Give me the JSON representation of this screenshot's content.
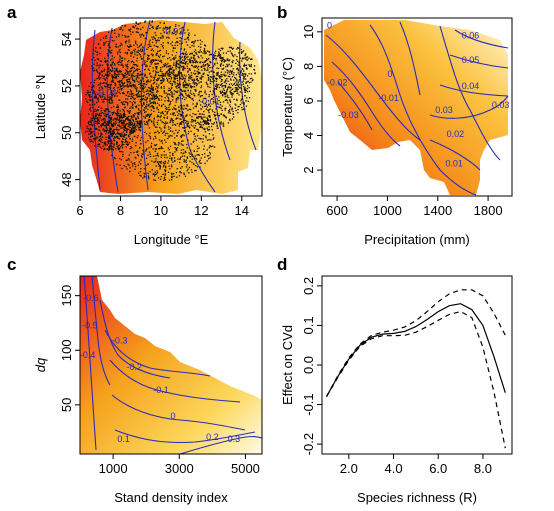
{
  "chart_data": [
    {
      "panel": "a",
      "type": "heatmap",
      "xlabel": "Longitude °E",
      "ylabel": "Latitude °N",
      "xlim": [
        6,
        15
      ],
      "ylim": [
        47.3,
        54.9
      ],
      "xticks": [
        6,
        8,
        10,
        12,
        14
      ],
      "yticks": [
        48,
        50,
        52,
        54
      ],
      "contour_labels": [
        {
          "text": "-0.04",
          "x": 7.3,
          "y": 51.6
        },
        {
          "text": "-0.03",
          "x": 10.6,
          "y": 54.2
        },
        {
          "text": "-0.01",
          "x": 12.4,
          "y": 51.2
        }
      ],
      "overlay": "black points (plot locations)"
    },
    {
      "panel": "b",
      "type": "heatmap",
      "xlabel": "Precipitation (mm)",
      "ylabel": "Temperature (°C)",
      "xlim": [
        480,
        1990
      ],
      "ylim": [
        0.5,
        10.8
      ],
      "xticks": [
        600,
        1000,
        1400,
        1800
      ],
      "yticks": [
        2,
        4,
        6,
        8,
        10
      ],
      "contour_labels": [
        {
          "text": "0",
          "x": 540,
          "y": 10.2
        },
        {
          "text": "-0.02",
          "x": 600,
          "y": 6.9
        },
        {
          "text": "-0.03",
          "x": 690,
          "y": 5.0
        },
        {
          "text": "-0.01",
          "x": 1010,
          "y": 6.0
        },
        {
          "text": "0",
          "x": 1020,
          "y": 7.4
        },
        {
          "text": "0.06",
          "x": 1660,
          "y": 9.6
        },
        {
          "text": "0.05",
          "x": 1660,
          "y": 8.2
        },
        {
          "text": "0.04",
          "x": 1660,
          "y": 6.7
        },
        {
          "text": "0.03",
          "x": 1450,
          "y": 5.3
        },
        {
          "text": "0.03",
          "x": 1900,
          "y": 5.6
        },
        {
          "text": "0.02",
          "x": 1540,
          "y": 3.9
        },
        {
          "text": "0.01",
          "x": 1530,
          "y": 2.2
        }
      ]
    },
    {
      "panel": "c",
      "type": "heatmap",
      "xlabel": "Stand density index",
      "ylabel": "dq",
      "xlim": [
        0,
        5500
      ],
      "ylim": [
        5,
        168
      ],
      "xticks": [
        1000,
        3000,
        5000
      ],
      "yticks": [
        50,
        100,
        150
      ],
      "contour_labels": [
        {
          "text": "-0.6",
          "x": 330,
          "y": 145
        },
        {
          "text": "-0.5",
          "x": 300,
          "y": 120
        },
        {
          "text": "-0.4",
          "x": 230,
          "y": 93
        },
        {
          "text": "-0.3",
          "x": 1200,
          "y": 106
        },
        {
          "text": "-0.2",
          "x": 1640,
          "y": 82
        },
        {
          "text": "-0.1",
          "x": 2450,
          "y": 61
        },
        {
          "text": "0",
          "x": 2810,
          "y": 37
        },
        {
          "text": "0.1",
          "x": 1320,
          "y": 16
        },
        {
          "text": "0.2",
          "x": 4000,
          "y": 18
        },
        {
          "text": "0.3",
          "x": 4650,
          "y": 16
        }
      ]
    },
    {
      "panel": "d",
      "type": "line",
      "xlabel": "Species richness (R)",
      "ylabel": "Effect on CVd",
      "xlim": [
        0.8,
        9.3
      ],
      "ylim": [
        -0.225,
        0.225
      ],
      "xticks": [
        2,
        4,
        6,
        8
      ],
      "yticks": [
        -0.2,
        -0.1,
        0.0,
        0.1,
        0.2
      ],
      "x": [
        1,
        1.5,
        2,
        2.5,
        3,
        3.5,
        4,
        4.5,
        5,
        5.5,
        6,
        6.5,
        7,
        7.5,
        8,
        8.5,
        9
      ],
      "series": [
        {
          "style": "solid",
          "values": [
            -0.08,
            -0.03,
            0.015,
            0.05,
            0.07,
            0.078,
            0.08,
            0.085,
            0.097,
            0.115,
            0.135,
            0.15,
            0.155,
            0.14,
            0.1,
            0.02,
            -0.07
          ]
        },
        {
          "style": "dashed",
          "values": [
            -0.08,
            -0.028,
            0.018,
            0.053,
            0.074,
            0.083,
            0.088,
            0.096,
            0.112,
            0.135,
            0.16,
            0.18,
            0.19,
            0.19,
            0.175,
            0.13,
            0.075
          ]
        },
        {
          "style": "dashed",
          "values": [
            -0.08,
            -0.032,
            0.012,
            0.047,
            0.066,
            0.074,
            0.074,
            0.075,
            0.083,
            0.097,
            0.113,
            0.128,
            0.135,
            0.12,
            0.045,
            -0.07,
            -0.21
          ]
        }
      ]
    }
  ],
  "colors": {
    "low": "#e8231d",
    "mid": "#f7a41e",
    "high": "#fff5cc",
    "contour": "#2b2bb8"
  }
}
